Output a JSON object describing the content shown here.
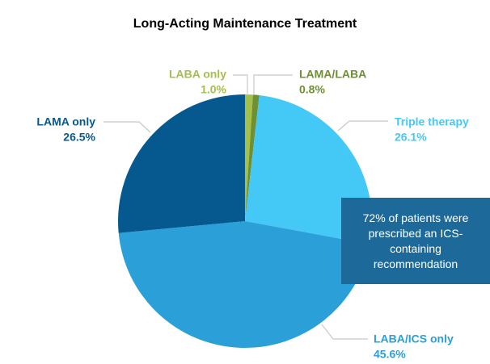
{
  "chart_data": {
    "type": "pie",
    "title": "Long-Acting Maintenance Treatment",
    "categories": [
      "LABA only",
      "LAMA/LABA",
      "Triple therapy",
      "LABA/ICS only",
      "LAMA only"
    ],
    "values": [
      1.0,
      0.8,
      26.1,
      45.6,
      26.5
    ],
    "value_labels": [
      "1.0%",
      "0.8%",
      "26.1%",
      "45.6%",
      "26.5%"
    ],
    "colors": [
      "#a5c04a",
      "#6f8f33",
      "#44c8f5",
      "#2a9fd8",
      "#06598f"
    ],
    "annotation": "72% of patients were prescribed an ICS-containing recommendation"
  }
}
